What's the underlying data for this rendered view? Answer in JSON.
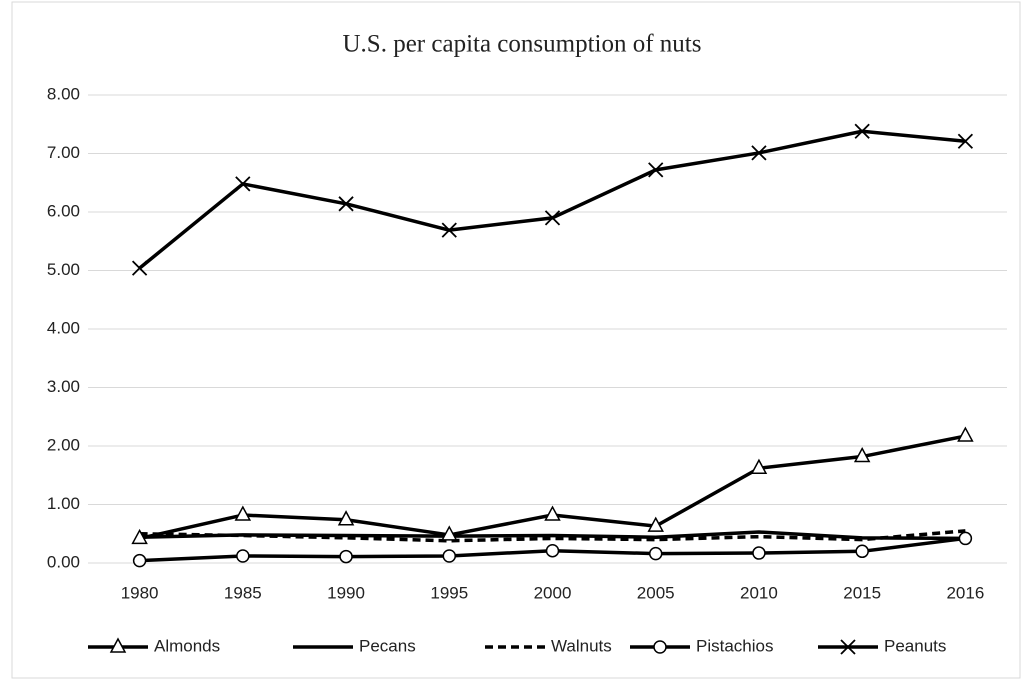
{
  "chart_data": {
    "type": "line",
    "title": "U.S. per capita consumption of nuts",
    "categories": [
      "1980",
      "1985",
      "1990",
      "1995",
      "2000",
      "2005",
      "2010",
      "2015",
      "2016"
    ],
    "ylim": [
      0,
      8
    ],
    "yticks": [
      {
        "value": 0,
        "label": "0.00"
      },
      {
        "value": 1,
        "label": "1.00"
      },
      {
        "value": 2,
        "label": "2.00"
      },
      {
        "value": 3,
        "label": "3.00"
      },
      {
        "value": 4,
        "label": "4.00"
      },
      {
        "value": 5,
        "label": "5.00"
      },
      {
        "value": 6,
        "label": "6.00"
      },
      {
        "value": 7,
        "label": "7.00"
      },
      {
        "value": 8,
        "label": "8.00"
      }
    ],
    "grid": true,
    "legend": "bottom",
    "series": [
      {
        "name": "Almonds",
        "color": "#000000",
        "marker": "triangle",
        "dash": false,
        "values": [
          0.42,
          0.82,
          0.74,
          0.48,
          0.82,
          0.63,
          1.62,
          1.82,
          2.17
        ]
      },
      {
        "name": "Pecans",
        "color": "#000000",
        "marker": "none",
        "dash": false,
        "values": [
          0.44,
          0.48,
          0.47,
          0.46,
          0.47,
          0.44,
          0.53,
          0.43,
          0.42
        ]
      },
      {
        "name": "Walnuts",
        "color": "#000000",
        "marker": "none",
        "dash": true,
        "values": [
          0.5,
          0.47,
          0.43,
          0.38,
          0.42,
          0.4,
          0.45,
          0.4,
          0.55
        ]
      },
      {
        "name": "Pistachios",
        "color": "#000000",
        "marker": "circle",
        "dash": false,
        "values": [
          0.04,
          0.12,
          0.11,
          0.12,
          0.21,
          0.16,
          0.17,
          0.2,
          0.42
        ]
      },
      {
        "name": "Peanuts",
        "color": "#000000",
        "marker": "x",
        "dash": false,
        "values": [
          5.04,
          6.48,
          6.14,
          5.69,
          5.9,
          6.72,
          7.01,
          7.38,
          7.21
        ]
      }
    ]
  }
}
